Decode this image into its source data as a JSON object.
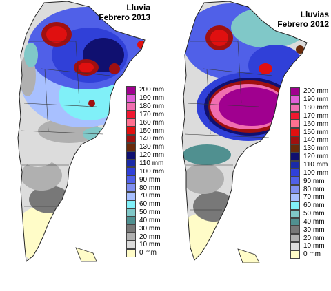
{
  "panels": [
    {
      "title_line1": "Lluvia",
      "title_line2": "Febrero 2013"
    },
    {
      "title_line1": "Lluvias",
      "title_line2": "Febrero 2012"
    }
  ],
  "legend": [
    {
      "label": "200 mm",
      "color": "#a0008f"
    },
    {
      "label": "190 mm",
      "color": "#e05fd8"
    },
    {
      "label": "180 mm",
      "color": "#f06eb0"
    },
    {
      "label": "170 mm",
      "color": "#f01830"
    },
    {
      "label": "160 mm",
      "color": "#ff7090"
    },
    {
      "label": "150 mm",
      "color": "#e01010"
    },
    {
      "label": "140 mm",
      "color": "#a01010"
    },
    {
      "label": "130 mm",
      "color": "#6a2a0a"
    },
    {
      "label": "120 mm",
      "color": "#101070"
    },
    {
      "label": "110 mm",
      "color": "#1a2aa8"
    },
    {
      "label": "100 mm",
      "color": "#3040d8"
    },
    {
      "label": "90 mm",
      "color": "#5060e8"
    },
    {
      "label": "80 mm",
      "color": "#8090f0"
    },
    {
      "label": "70 mm",
      "color": "#a8c0ff"
    },
    {
      "label": "60 mm",
      "color": "#80f0f8"
    },
    {
      "label": "50 mm",
      "color": "#80c8c8"
    },
    {
      "label": "40 mm",
      "color": "#509090"
    },
    {
      "label": "30 mm",
      "color": "#787878"
    },
    {
      "label": "20 mm",
      "color": "#b0b0b0"
    },
    {
      "label": "10 mm",
      "color": "#dcdcdc"
    },
    {
      "label": "0 mm",
      "color": "#fffcc8"
    }
  ]
}
